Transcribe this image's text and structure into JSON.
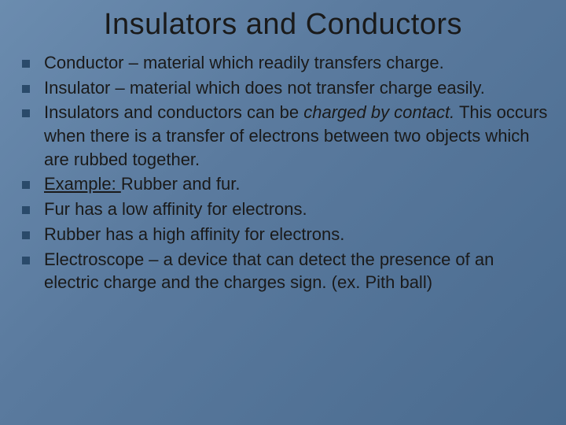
{
  "slide": {
    "title": "Insulators and Conductors",
    "background_gradient": [
      "#6b8caf",
      "#5a7a9e",
      "#4a6b8f"
    ],
    "title_color": "#1a1a1a",
    "title_fontsize": 38,
    "body_fontsize": 22,
    "body_color": "#1a1a1a",
    "bullet_color": "#2a4a6a",
    "bullet_size": 10,
    "font_family": "Verdana",
    "bullets": [
      {
        "text": "Conductor – material which readily transfers charge."
      },
      {
        "text": "Insulator – material which does not transfer charge easily."
      },
      {
        "prefix": "Insulators and conductors can be ",
        "italic_part": "charged by contact.",
        "suffix": " This occurs when there is a transfer of electrons between two objects which are rubbed together."
      },
      {
        "underline_part": "Example: ",
        "suffix": " Rubber and fur."
      },
      {
        "text": "Fur has a low affinity for electrons."
      },
      {
        "text": "Rubber has a high affinity for electrons."
      },
      {
        "text": "Electroscope – a device that can detect the presence of an electric charge and the charges sign. (ex. Pith ball)"
      }
    ]
  }
}
